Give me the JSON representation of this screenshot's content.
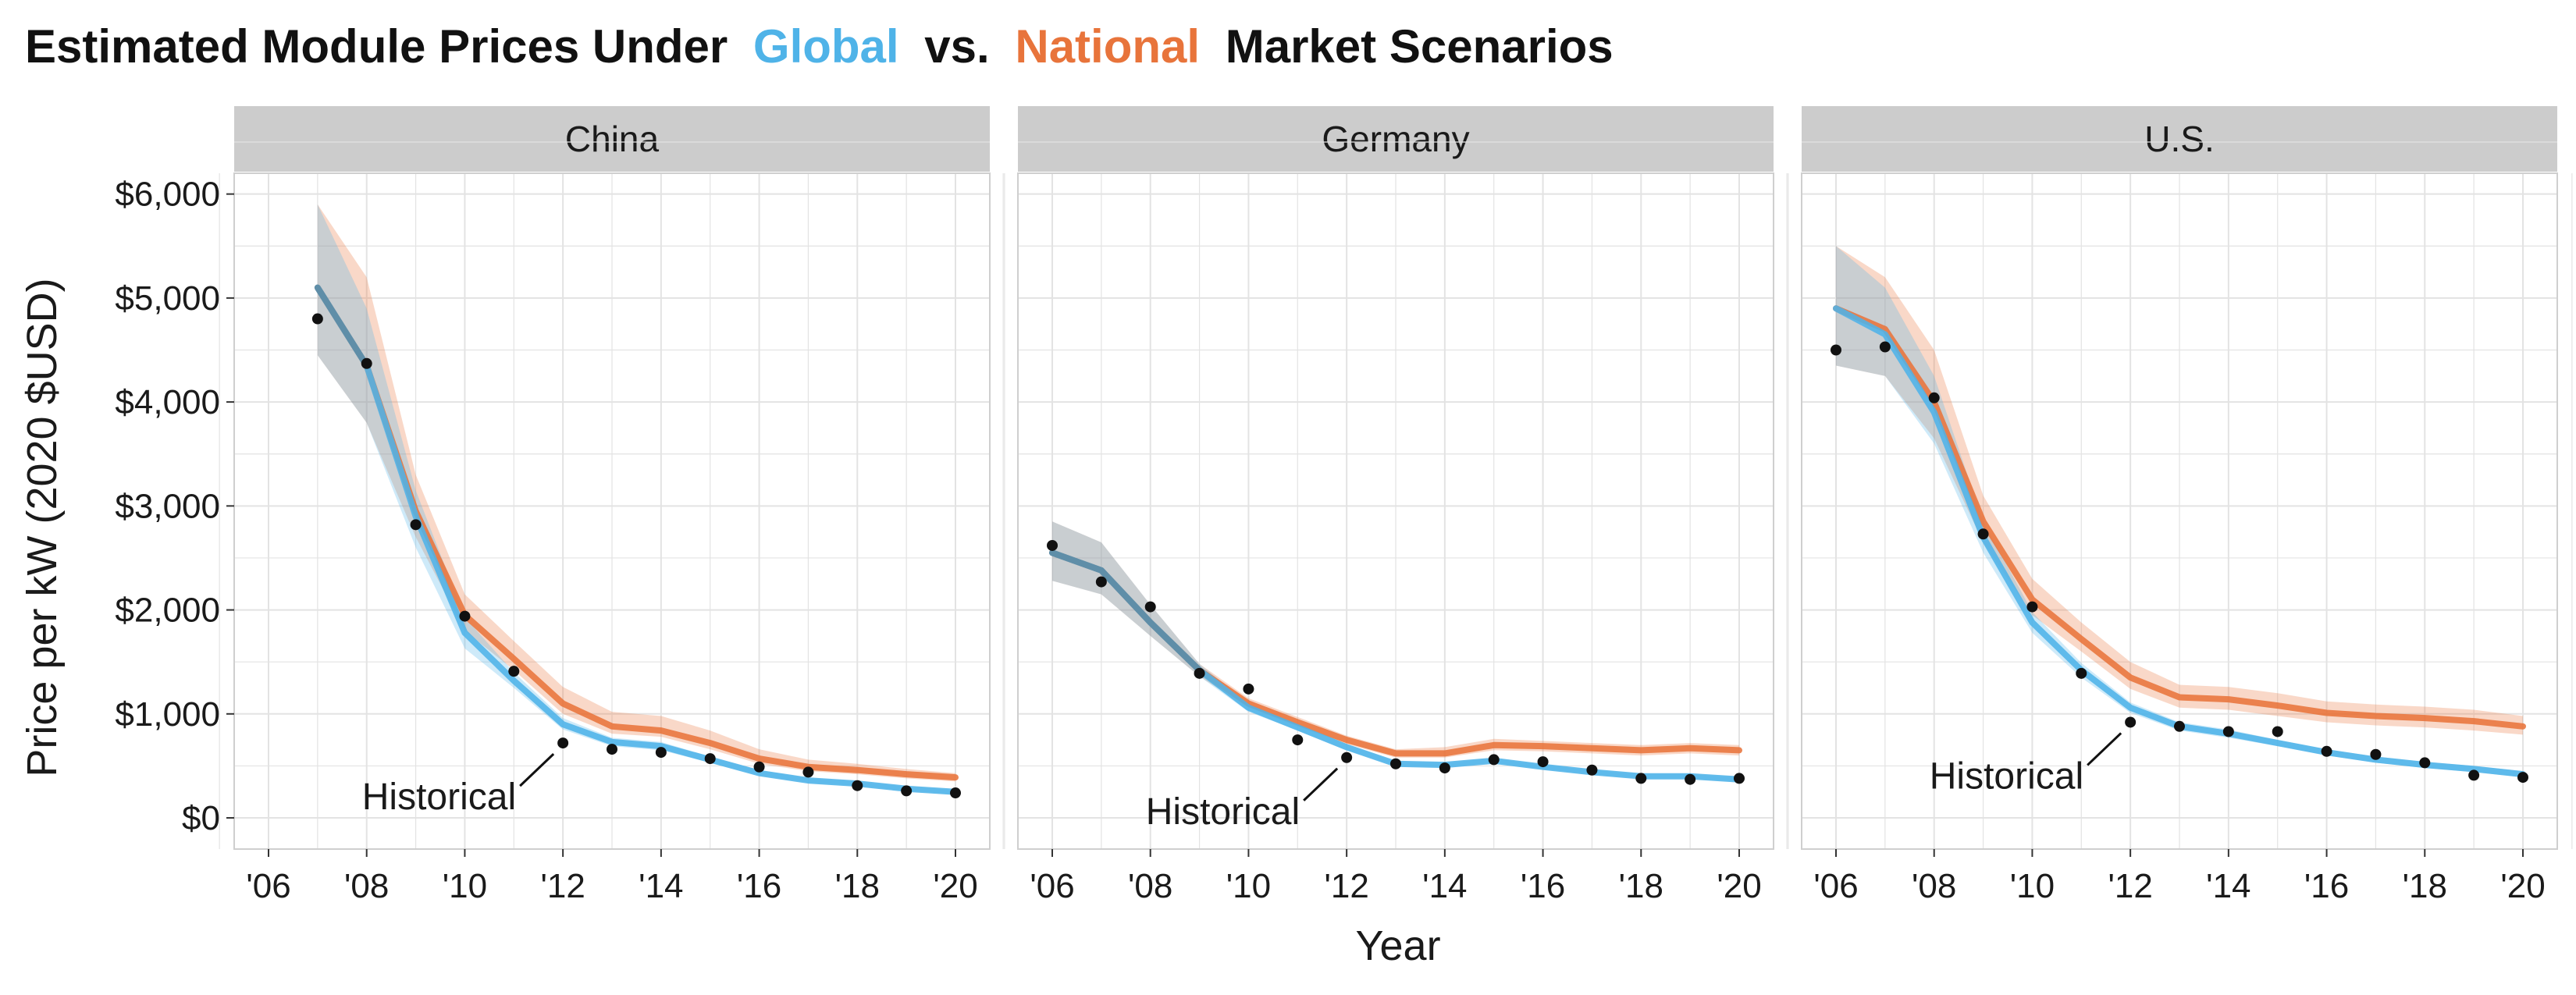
{
  "colors": {
    "global": "#4fb3e8",
    "national": "#e8743b",
    "overlap": "#5f8ea8",
    "points": "#111111",
    "strip_bg": "#cccccc",
    "grid": "#e3e3e3"
  },
  "chart_data": {
    "type": "line",
    "title": {
      "prefix": "Estimated Module Prices Under",
      "global_word": "Global",
      "middle": "vs.",
      "national_word": "National",
      "suffix": "Market Scenarios"
    },
    "xlabel": "Year",
    "ylabel": "Price per kW (2020 $USD)",
    "xlim": [
      2005.3,
      2020.7
    ],
    "ylim": [
      -300,
      6200
    ],
    "x_ticks": [
      2006,
      2008,
      2010,
      2012,
      2014,
      2016,
      2018,
      2020
    ],
    "x_tick_labels": [
      "'06",
      "'08",
      "'10",
      "'12",
      "'14",
      "'16",
      "'18",
      "'20"
    ],
    "y_ticks": [
      0,
      1000,
      2000,
      3000,
      4000,
      5000,
      6000
    ],
    "y_tick_labels": [
      "$0",
      "$1,000",
      "$2,000",
      "$3,000",
      "$4,000",
      "$5,000",
      "$6,000"
    ],
    "annotation_label": "Historical",
    "panels": [
      {
        "name": "China",
        "annotation_at": [
          2012,
          720
        ],
        "historical": {
          "x": [
            2007,
            2008,
            2009,
            2010,
            2011,
            2012,
            2013,
            2014,
            2015,
            2016,
            2017,
            2018,
            2019,
            2020
          ],
          "y": [
            4800,
            4370,
            2820,
            1940,
            1410,
            720,
            660,
            630,
            570,
            490,
            440,
            310,
            260,
            240
          ]
        },
        "global": {
          "x": [
            2007,
            2008,
            2009,
            2010,
            2011,
            2012,
            2013,
            2014,
            2015,
            2016,
            2017,
            2018,
            2019,
            2020
          ],
          "y": [
            5100,
            4350,
            2900,
            1780,
            1320,
            900,
            730,
            690,
            560,
            430,
            360,
            330,
            280,
            250
          ],
          "lo": [
            4450,
            3800,
            2600,
            1630,
            1250,
            850,
            690,
            650,
            530,
            410,
            340,
            310,
            260,
            230
          ],
          "hi": [
            5900,
            4900,
            3150,
            1930,
            1400,
            960,
            770,
            730,
            590,
            460,
            380,
            350,
            300,
            270
          ]
        },
        "national": {
          "x": [
            2007,
            2008,
            2009,
            2010,
            2011,
            2012,
            2013,
            2014,
            2015,
            2016,
            2017,
            2018,
            2019,
            2020
          ],
          "y": [
            5100,
            4350,
            2950,
            1950,
            1530,
            1100,
            880,
            840,
            720,
            570,
            490,
            460,
            420,
            390
          ],
          "lo": [
            4450,
            3800,
            2700,
            1800,
            1420,
            1000,
            810,
            780,
            660,
            520,
            450,
            420,
            380,
            350
          ],
          "hi": [
            5900,
            5200,
            3300,
            2150,
            1700,
            1260,
            1020,
            980,
            840,
            660,
            560,
            520,
            470,
            430
          ]
        }
      },
      {
        "name": "Germany",
        "annotation_at": [
          2012,
          580
        ],
        "historical": {
          "x": [
            2006,
            2007,
            2008,
            2009,
            2010,
            2011,
            2012,
            2013,
            2014,
            2015,
            2016,
            2017,
            2018,
            2019,
            2020
          ],
          "y": [
            2620,
            2270,
            2030,
            1390,
            1240,
            750,
            580,
            520,
            480,
            560,
            540,
            460,
            380,
            370,
            380
          ]
        },
        "global": {
          "x": [
            2006,
            2007,
            2008,
            2009,
            2010,
            2011,
            2012,
            2013,
            2014,
            2015,
            2016,
            2017,
            2018,
            2019,
            2020
          ],
          "y": [
            2550,
            2380,
            1880,
            1420,
            1060,
            870,
            680,
            520,
            510,
            550,
            490,
            440,
            400,
            400,
            370
          ],
          "lo": [
            2280,
            2150,
            1750,
            1360,
            1020,
            840,
            650,
            500,
            490,
            530,
            470,
            420,
            380,
            380,
            350
          ],
          "hi": [
            2850,
            2650,
            2050,
            1480,
            1100,
            900,
            710,
            540,
            530,
            570,
            510,
            460,
            420,
            420,
            390
          ]
        },
        "national": {
          "x": [
            2006,
            2007,
            2008,
            2009,
            2010,
            2011,
            2012,
            2013,
            2014,
            2015,
            2016,
            2017,
            2018,
            2019,
            2020
          ],
          "y": [
            2550,
            2380,
            1880,
            1420,
            1100,
            920,
            750,
            620,
            620,
            700,
            690,
            670,
            650,
            670,
            650
          ],
          "lo": [
            2280,
            2150,
            1750,
            1360,
            1060,
            880,
            710,
            580,
            580,
            650,
            640,
            620,
            600,
            620,
            600
          ],
          "hi": [
            2850,
            2650,
            2050,
            1480,
            1150,
            970,
            790,
            660,
            680,
            760,
            740,
            720,
            700,
            720,
            700
          ]
        }
      },
      {
        "name": "U.S.",
        "annotation_at": [
          2012,
          920
        ],
        "historical": {
          "x": [
            2006,
            2007,
            2008,
            2009,
            2010,
            2011,
            2012,
            2013,
            2014,
            2015,
            2016,
            2017,
            2018,
            2019,
            2020
          ],
          "y": [
            4500,
            4530,
            4040,
            2730,
            2030,
            1390,
            920,
            880,
            830,
            830,
            640,
            610,
            530,
            410,
            390
          ]
        },
        "global": {
          "x": [
            2006,
            2007,
            2008,
            2009,
            2010,
            2011,
            2012,
            2013,
            2014,
            2015,
            2016,
            2017,
            2018,
            2019,
            2020
          ],
          "y": [
            4900,
            4650,
            3900,
            2700,
            1880,
            1420,
            1060,
            880,
            810,
            720,
            630,
            560,
            510,
            470,
            420
          ],
          "lo": [
            4350,
            4250,
            3600,
            2550,
            1780,
            1350,
            1010,
            840,
            770,
            690,
            600,
            530,
            480,
            440,
            390
          ],
          "hi": [
            5500,
            5100,
            4250,
            2850,
            1980,
            1490,
            1110,
            920,
            850,
            750,
            660,
            590,
            540,
            500,
            450
          ]
        },
        "national": {
          "x": [
            2006,
            2007,
            2008,
            2009,
            2010,
            2011,
            2012,
            2013,
            2014,
            2015,
            2016,
            2017,
            2018,
            2019,
            2020
          ],
          "y": [
            4900,
            4700,
            4000,
            2850,
            2100,
            1720,
            1350,
            1160,
            1140,
            1080,
            1010,
            980,
            960,
            930,
            880
          ],
          "lo": [
            4350,
            4250,
            3650,
            2650,
            1950,
            1600,
            1240,
            1060,
            1040,
            980,
            920,
            890,
            870,
            840,
            800
          ],
          "hi": [
            5500,
            5200,
            4500,
            3100,
            2300,
            1880,
            1500,
            1280,
            1260,
            1200,
            1120,
            1090,
            1070,
            1040,
            980
          ]
        }
      }
    ]
  }
}
